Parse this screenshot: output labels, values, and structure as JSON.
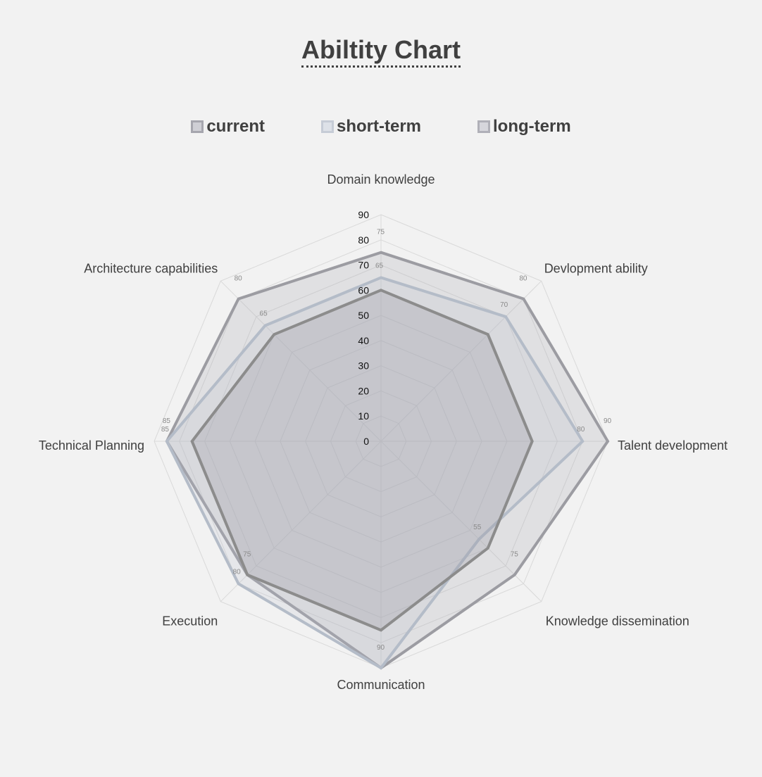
{
  "chart_data": {
    "type": "radar",
    "title": "Abiltity Chart",
    "categories": [
      "Domain knowledge",
      "Devlopment ability",
      "Talent development",
      "Knowledge dissemination",
      "Communication",
      "Execution",
      "Technical Planning",
      "Architecture capabilities"
    ],
    "rlim": [
      0,
      90
    ],
    "ticks": [
      "0",
      "10",
      "20",
      "30",
      "40",
      "50",
      "60",
      "70",
      "80",
      "90"
    ],
    "tick_values": [
      0,
      10,
      20,
      30,
      40,
      50,
      60,
      70,
      80,
      90
    ],
    "series": [
      {
        "name": "current",
        "values": [
          60,
          60,
          60,
          60,
          75,
          75,
          75,
          60
        ],
        "labels": [],
        "color": "#8c8c8c"
      },
      {
        "name": "short-term",
        "values": [
          65,
          70,
          80,
          55,
          90,
          80,
          85,
          65
        ],
        "labels": [
          "65",
          "70",
          "80",
          "55",
          "",
          "80",
          "85",
          "65"
        ],
        "color": "#b4bcc8"
      },
      {
        "name": "long-term",
        "values": [
          75,
          80,
          90,
          75,
          90,
          75,
          85,
          80
        ],
        "labels": [
          "75",
          "80",
          "90",
          "75",
          "90",
          "75",
          "85",
          "80"
        ],
        "color": "#9c9ca2"
      }
    ],
    "grid": true,
    "legend_position": "top"
  },
  "colors": {
    "background": "#f2f2f2",
    "gridline": "#d9d9d9",
    "current_line": "#8c8c8c",
    "short_line": "#b4bcc8",
    "long_line": "#9c9ca2"
  }
}
